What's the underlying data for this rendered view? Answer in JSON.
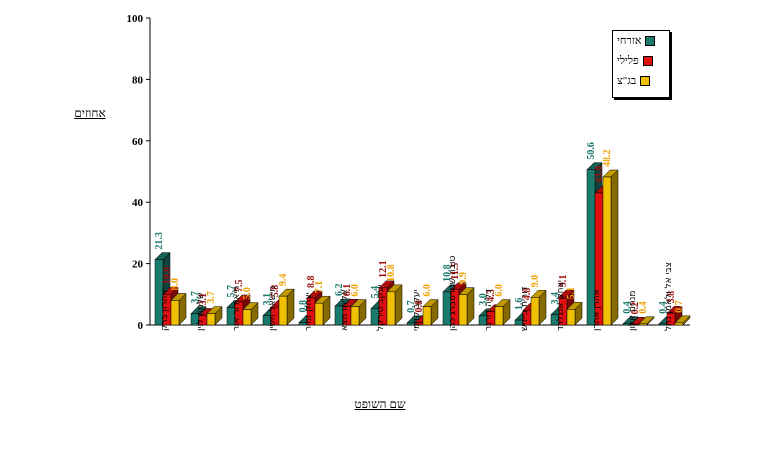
{
  "chart_data": {
    "type": "bar",
    "title": "",
    "xlabel": "שם השופט",
    "ylabel": "אחוזים",
    "ylim": [
      0,
      100
    ],
    "yticks": [
      0,
      20,
      40,
      60,
      80,
      100
    ],
    "grid": false,
    "legend": "top-right",
    "categories": [
      "אהרון ברק",
      "שלמה לוין",
      "תיאודור אור",
      "מישאל חשין",
      "יצחק זמיר",
      "אליהו מצא",
      "יעקב טירקל",
      "יעקב קדמי",
      "טובה שטרסברג כהן",
      "דליה דורנר",
      "דורית בייניש",
      "יצחק אנגלרד",
      "אהרן אהרן",
      "מנחם אלון",
      "צבי אל ולאמן נחל"
    ],
    "series": [
      {
        "name": "אזרחי",
        "color": "#1a7a6e",
        "values": [
          21.3,
          3.7,
          5.7,
          3.1,
          0.8,
          6.2,
          5.4,
          0.7,
          10.8,
          3.0,
          1.6,
          3.4,
          50.6,
          0.4,
          0.4
        ]
      },
      {
        "name": "פלילי",
        "color": "#e01010",
        "values": [
          10.0,
          3.1,
          7.5,
          5.8,
          8.8,
          6.1,
          12.1,
          0.8,
          11.5,
          4.3,
          4.8,
          9.1,
          43.0,
          0.2,
          3.8
        ]
      },
      {
        "name": "בג\"צ",
        "color": "#f0c000",
        "values": [
          8.0,
          3.7,
          5.0,
          9.4,
          7.1,
          6.0,
          10.8,
          6.0,
          9.9,
          6.0,
          9.0,
          5.1,
          48.2,
          0.4,
          0.7
        ]
      }
    ],
    "label_colors": [
      "#1a7a6e",
      "#a01010",
      "#f0a000"
    ]
  }
}
